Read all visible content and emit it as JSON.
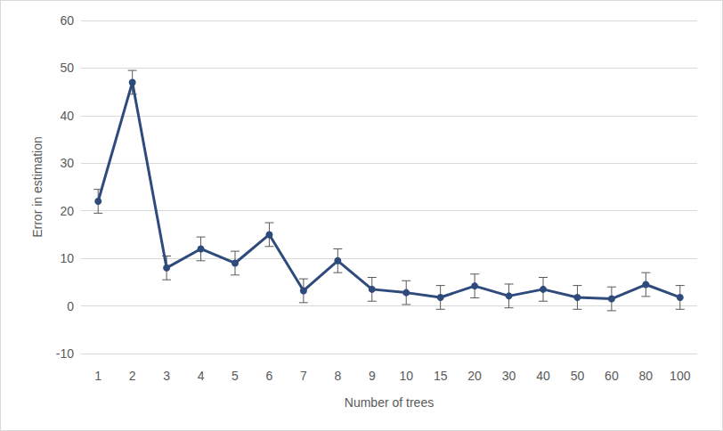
{
  "chart_data": {
    "type": "line",
    "x_label": "Number of trees",
    "y_label": "Error in estimation",
    "categories": [
      "1",
      "2",
      "3",
      "4",
      "5",
      "6",
      "7",
      "8",
      "9",
      "10",
      "15",
      "20",
      "30",
      "40",
      "50",
      "60",
      "80",
      "100"
    ],
    "values": [
      22,
      47,
      8,
      12,
      9,
      15,
      3.2,
      9.5,
      3.5,
      2.8,
      1.8,
      4.2,
      2.1,
      3.5,
      1.8,
      1.5,
      4.5,
      1.8
    ],
    "errors": [
      2.5,
      2.5,
      2.5,
      2.5,
      2.5,
      2.5,
      2.5,
      2.5,
      2.5,
      2.5,
      2.5,
      2.5,
      2.5,
      2.5,
      2.5,
      2.5,
      2.5,
      2.5
    ],
    "color": "#2f4b7c",
    "marker": "circle",
    "ylim": [
      -10,
      60
    ],
    "yticks": [
      -10,
      0,
      10,
      20,
      30,
      40,
      50,
      60
    ],
    "grid": true
  }
}
